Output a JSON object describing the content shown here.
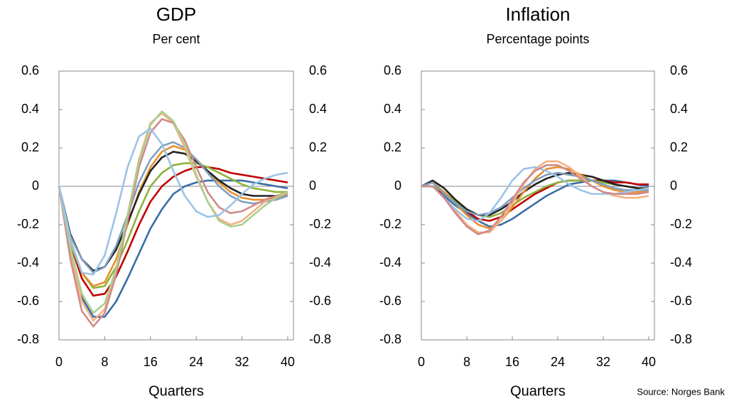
{
  "chart_data": [
    {
      "type": "line",
      "title": "GDP",
      "subtitle": "Per cent",
      "x_label": "Quarters",
      "xlim": [
        0,
        41
      ],
      "xticks": [
        0,
        8,
        16,
        24,
        32,
        40
      ],
      "ylim": [
        -0.8,
        0.6
      ],
      "yticks": [
        0.6,
        0.4,
        0.2,
        0,
        -0.2,
        -0.4,
        -0.6,
        -0.8
      ],
      "y2lim": [
        -0.8,
        0.6
      ],
      "y2ticks": [
        0.6,
        0.4,
        0.2,
        0,
        -0.2,
        -0.4,
        -0.6,
        -0.8
      ],
      "x": [
        0,
        2,
        4,
        6,
        8,
        10,
        12,
        14,
        16,
        18,
        20,
        22,
        24,
        26,
        28,
        30,
        32,
        34,
        36,
        38,
        40
      ],
      "series": [
        {
          "color": "#3a6ea5",
          "values": [
            0,
            -0.35,
            -0.58,
            -0.68,
            -0.68,
            -0.6,
            -0.48,
            -0.35,
            -0.22,
            -0.12,
            -0.04,
            0.0,
            0.02,
            0.03,
            0.03,
            0.03,
            0.03,
            0.02,
            0.01,
            0.0,
            -0.01
          ]
        },
        {
          "color": "#c00000",
          "values": [
            0,
            -0.3,
            -0.48,
            -0.57,
            -0.56,
            -0.47,
            -0.34,
            -0.2,
            -0.08,
            0.0,
            0.05,
            0.08,
            0.1,
            0.1,
            0.09,
            0.07,
            0.06,
            0.05,
            0.04,
            0.03,
            0.02
          ]
        },
        {
          "color": "#8db33b",
          "values": [
            0,
            -0.3,
            -0.45,
            -0.53,
            -0.52,
            -0.42,
            -0.28,
            -0.13,
            0.0,
            0.07,
            0.11,
            0.12,
            0.12,
            0.1,
            0.07,
            0.04,
            0.01,
            -0.01,
            -0.02,
            -0.03,
            -0.03
          ]
        },
        {
          "color": "#e8902a",
          "values": [
            0,
            -0.28,
            -0.45,
            -0.52,
            -0.5,
            -0.38,
            -0.2,
            -0.03,
            0.1,
            0.18,
            0.21,
            0.19,
            0.14,
            0.08,
            0.02,
            -0.03,
            -0.06,
            -0.07,
            -0.07,
            -0.06,
            -0.05
          ]
        },
        {
          "color": "#222222",
          "values": [
            0,
            -0.25,
            -0.38,
            -0.44,
            -0.42,
            -0.33,
            -0.19,
            -0.04,
            0.08,
            0.15,
            0.18,
            0.17,
            0.13,
            0.08,
            0.03,
            -0.01,
            -0.04,
            -0.05,
            -0.05,
            -0.05,
            -0.04
          ]
        },
        {
          "color": "#7f9fbf",
          "values": [
            0,
            -0.26,
            -0.38,
            -0.45,
            -0.42,
            -0.31,
            -0.15,
            0.02,
            0.14,
            0.21,
            0.23,
            0.2,
            0.14,
            0.07,
            0.0,
            -0.05,
            -0.08,
            -0.09,
            -0.08,
            -0.07,
            -0.05
          ]
        },
        {
          "color": "#f4b183",
          "values": [
            0,
            -0.35,
            -0.6,
            -0.7,
            -0.64,
            -0.44,
            -0.15,
            0.14,
            0.33,
            0.38,
            0.33,
            0.2,
            0.05,
            -0.08,
            -0.17,
            -0.2,
            -0.18,
            -0.13,
            -0.08,
            -0.05,
            -0.03
          ]
        },
        {
          "color": "#d08a8a",
          "values": [
            0,
            -0.38,
            -0.65,
            -0.73,
            -0.66,
            -0.46,
            -0.18,
            0.1,
            0.28,
            0.35,
            0.33,
            0.24,
            0.1,
            -0.03,
            -0.11,
            -0.14,
            -0.13,
            -0.1,
            -0.07,
            -0.05,
            -0.04
          ]
        },
        {
          "color": "#a9d08e",
          "values": [
            0,
            -0.32,
            -0.56,
            -0.66,
            -0.61,
            -0.43,
            -0.15,
            0.13,
            0.32,
            0.39,
            0.34,
            0.22,
            0.06,
            -0.08,
            -0.18,
            -0.21,
            -0.2,
            -0.15,
            -0.1,
            -0.06,
            -0.03
          ]
        },
        {
          "color": "#9dc3e6",
          "values": [
            0,
            -0.28,
            -0.45,
            -0.46,
            -0.36,
            -0.14,
            0.1,
            0.26,
            0.3,
            0.22,
            0.08,
            -0.05,
            -0.13,
            -0.16,
            -0.15,
            -0.1,
            -0.04,
            0.01,
            0.04,
            0.06,
            0.07
          ]
        }
      ]
    },
    {
      "type": "line",
      "title": "Inflation",
      "subtitle": "Percentage points",
      "x_label": "Quarters",
      "xlim": [
        0,
        41
      ],
      "xticks": [
        0,
        8,
        16,
        24,
        32,
        40
      ],
      "ylim": [
        -0.8,
        0.6
      ],
      "yticks": [
        0.6,
        0.4,
        0.2,
        0,
        -0.2,
        -0.4,
        -0.6,
        -0.8
      ],
      "y2lim": [
        -0.8,
        0.6
      ],
      "y2ticks": [
        0.6,
        0.4,
        0.2,
        0,
        -0.2,
        -0.4,
        -0.6,
        -0.8
      ],
      "x": [
        0,
        2,
        4,
        6,
        8,
        10,
        12,
        14,
        16,
        18,
        20,
        22,
        24,
        26,
        28,
        30,
        32,
        34,
        36,
        38,
        40
      ],
      "series": [
        {
          "color": "#3a6ea5",
          "values": [
            0,
            0,
            -0.05,
            -0.1,
            -0.14,
            -0.18,
            -0.21,
            -0.2,
            -0.17,
            -0.13,
            -0.09,
            -0.05,
            -0.02,
            0.01,
            0.02,
            0.03,
            0.03,
            0.03,
            0.02,
            0.01,
            0.0
          ]
        },
        {
          "color": "#c00000",
          "values": [
            0,
            0,
            -0.04,
            -0.08,
            -0.13,
            -0.17,
            -0.18,
            -0.16,
            -0.12,
            -0.08,
            -0.04,
            -0.01,
            0.02,
            0.03,
            0.03,
            0.03,
            0.03,
            0.02,
            0.02,
            0.01,
            0.01
          ]
        },
        {
          "color": "#8db33b",
          "values": [
            0,
            0,
            -0.03,
            -0.08,
            -0.12,
            -0.15,
            -0.16,
            -0.14,
            -0.1,
            -0.06,
            -0.03,
            0.0,
            0.02,
            0.03,
            0.03,
            0.03,
            0.02,
            0.01,
            0,
            -0.01,
            -0.01
          ]
        },
        {
          "color": "#222222",
          "values": [
            0,
            0.03,
            -0.01,
            -0.07,
            -0.12,
            -0.15,
            -0.15,
            -0.12,
            -0.08,
            -0.03,
            0.01,
            0.04,
            0.06,
            0.07,
            0.06,
            0.05,
            0.03,
            0.01,
            0,
            -0.01,
            -0.01
          ]
        },
        {
          "color": "#e8902a",
          "values": [
            0,
            0.02,
            -0.03,
            -0.09,
            -0.15,
            -0.2,
            -0.22,
            -0.18,
            -0.11,
            -0.03,
            0.04,
            0.09,
            0.1,
            0.09,
            0.06,
            0.03,
            0,
            -0.02,
            -0.03,
            -0.03,
            -0.03
          ]
        },
        {
          "color": "#7f9fbf",
          "values": [
            0,
            0.02,
            -0.04,
            -0.09,
            -0.13,
            -0.15,
            -0.14,
            -0.11,
            -0.06,
            -0.01,
            0.03,
            0.06,
            0.07,
            0.06,
            0.05,
            0.03,
            0.01,
            -0.01,
            -0.02,
            -0.02,
            -0.02
          ]
        },
        {
          "color": "#f4b183",
          "values": [
            0,
            0,
            -0.06,
            -0.13,
            -0.2,
            -0.24,
            -0.24,
            -0.18,
            -0.09,
            0.01,
            0.09,
            0.13,
            0.13,
            0.1,
            0.05,
            0,
            -0.03,
            -0.05,
            -0.06,
            -0.06,
            -0.05
          ]
        },
        {
          "color": "#9dc3e6",
          "values": [
            0,
            0,
            -0.06,
            -0.12,
            -0.17,
            -0.18,
            -0.14,
            -0.06,
            0.03,
            0.09,
            0.1,
            0.08,
            0.05,
            0.01,
            -0.02,
            -0.04,
            -0.04,
            -0.04,
            -0.03,
            -0.02,
            -0.01
          ]
        },
        {
          "color": "#d08a8a",
          "values": [
            0,
            0,
            -0.06,
            -0.14,
            -0.21,
            -0.25,
            -0.23,
            -0.16,
            -0.07,
            0.02,
            0.08,
            0.11,
            0.11,
            0.08,
            0.04,
            0.0,
            -0.03,
            -0.04,
            -0.04,
            -0.04,
            -0.03
          ]
        }
      ]
    }
  ],
  "source": "Source: Norges Bank"
}
